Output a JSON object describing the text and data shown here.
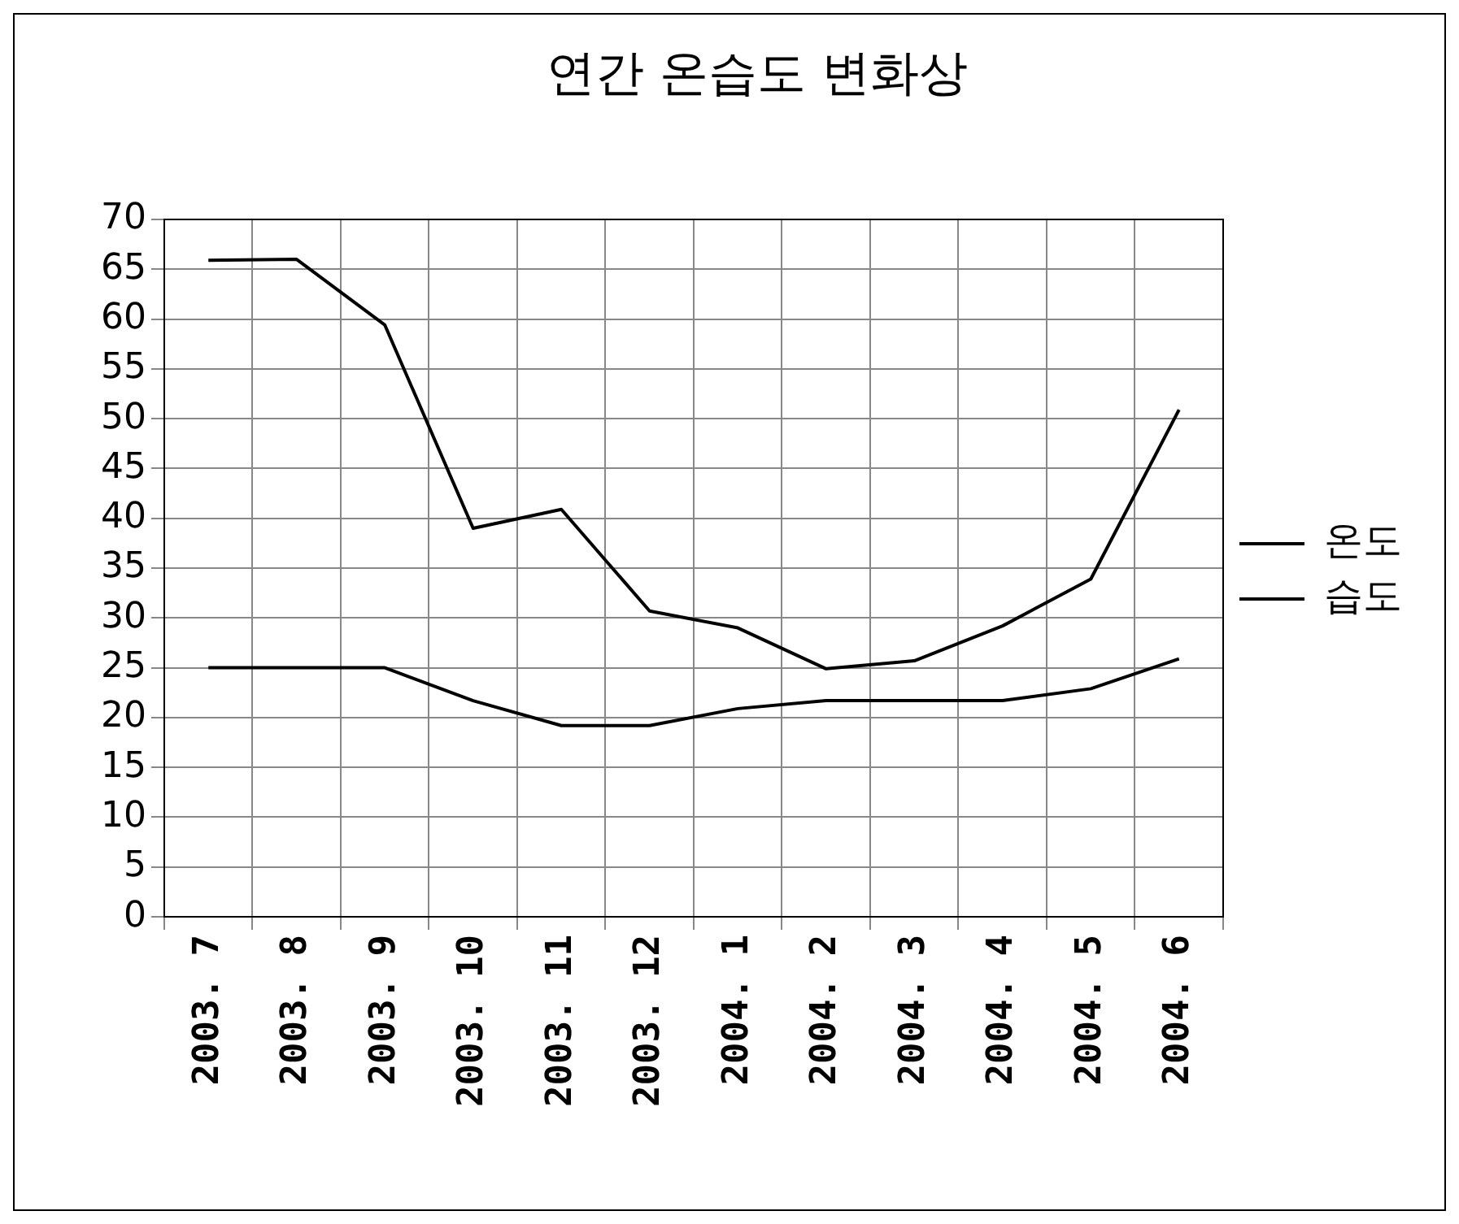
{
  "chart_data": {
    "type": "line",
    "title": "연간 온습도 변화상",
    "categories": [
      "2003. 7",
      "2003. 8",
      "2003. 9",
      "2003. 10",
      "2003. 11",
      "2003. 12",
      "2004. 1",
      "2004. 2",
      "2004. 3",
      "2004. 4",
      "2004. 5",
      "2004. 6"
    ],
    "series": [
      {
        "name": "온도",
        "color": "#000000",
        "values": [
          25,
          25,
          25,
          21.7,
          19.2,
          19.2,
          20.9,
          21.7,
          21.7,
          21.7,
          22.9,
          25.9
        ]
      },
      {
        "name": "습도",
        "color": "#000000",
        "values": [
          65.9,
          66,
          59.4,
          39,
          40.9,
          30.7,
          29,
          24.9,
          25.7,
          29.2,
          33.9,
          50.9
        ]
      }
    ],
    "ylim": [
      0,
      70
    ],
    "yticks": [
      0,
      5,
      10,
      15,
      20,
      25,
      30,
      35,
      40,
      45,
      50,
      55,
      60,
      65,
      70
    ],
    "grid": true,
    "legend": "right",
    "marker": "none",
    "line_style": "solid"
  }
}
